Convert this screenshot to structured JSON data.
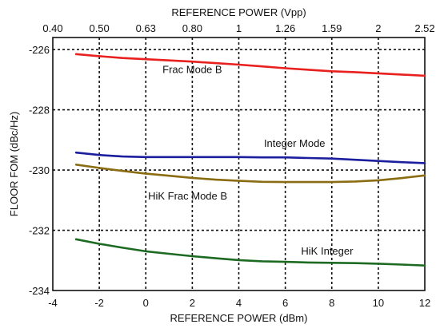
{
  "chart_data": {
    "type": "line",
    "xlabel": "REFERENCE POWER  (dBm)",
    "ylabel": "FLOOR FOM  (dBc/Hz)",
    "x2label": "REFERENCE POWER (Vpp)",
    "xlim": [
      -4,
      12
    ],
    "ylim": [
      -234,
      -225.6
    ],
    "x_ticks": [
      -4,
      -2,
      0,
      2,
      4,
      6,
      8,
      10,
      12
    ],
    "y_ticks": [
      -234,
      -232,
      -230,
      -228,
      -226
    ],
    "x_tick_labels": [
      "-4",
      "-2",
      "0",
      "2",
      "4",
      "6",
      "8",
      "10",
      "12"
    ],
    "y_tick_labels": [
      "-234",
      "-232",
      "-230",
      "-228",
      "-226"
    ],
    "top_ticks": [
      {
        "label": "0.40",
        "x": -4
      },
      {
        "label": "0.50",
        "x": -2
      },
      {
        "label": "0.63",
        "x": 0
      },
      {
        "label": "0.80",
        "x": 2
      },
      {
        "label": "1",
        "x": 4
      },
      {
        "label": "1.26",
        "x": 6
      },
      {
        "label": "1.59",
        "x": 8
      },
      {
        "label": "2",
        "x": 10
      },
      {
        "label": "2.52",
        "x": 12
      }
    ],
    "grid": "dashed",
    "series": [
      {
        "name": "Frac Mode B",
        "color": "#e8201e",
        "x": [
          -3,
          -2,
          -1,
          0,
          1,
          2,
          3,
          4,
          5,
          6,
          7,
          8,
          9,
          10,
          11,
          12
        ],
        "y": [
          -226.15,
          -226.22,
          -226.28,
          -226.32,
          -226.36,
          -226.4,
          -226.45,
          -226.5,
          -226.56,
          -226.62,
          -226.67,
          -226.72,
          -226.75,
          -226.79,
          -226.83,
          -226.87
        ],
        "label_at": [
          2,
          -226.65
        ]
      },
      {
        "name": "Integer Mode",
        "color": "#1b1f9e",
        "x": [
          -3,
          -2,
          -1,
          0,
          1,
          2,
          3,
          4,
          5,
          6,
          7,
          8,
          9,
          10,
          11,
          12
        ],
        "y": [
          -229.42,
          -229.5,
          -229.55,
          -229.57,
          -229.57,
          -229.57,
          -229.57,
          -229.57,
          -229.58,
          -229.58,
          -229.6,
          -229.62,
          -229.66,
          -229.7,
          -229.74,
          -229.77
        ],
        "label_at": [
          6.4,
          -229.1
        ]
      },
      {
        "name": "HiK Frac Mode B",
        "color": "#8a6d12",
        "x": [
          -3,
          -2,
          -1,
          0,
          1,
          2,
          3,
          4,
          5,
          6,
          7,
          8,
          9,
          10,
          11,
          12
        ],
        "y": [
          -229.82,
          -229.93,
          -230.03,
          -230.12,
          -230.19,
          -230.26,
          -230.32,
          -230.36,
          -230.39,
          -230.4,
          -230.4,
          -230.4,
          -230.38,
          -230.34,
          -230.27,
          -230.18
        ],
        "label_at": [
          1.8,
          -230.85
        ]
      },
      {
        "name": "HiK Integer",
        "color": "#1d6b22",
        "x": [
          -3,
          -2,
          -1,
          0,
          1,
          2,
          3,
          4,
          5,
          6,
          7,
          8,
          9,
          10,
          11,
          12
        ],
        "y": [
          -232.3,
          -232.45,
          -232.58,
          -232.7,
          -232.78,
          -232.86,
          -232.93,
          -232.99,
          -233.03,
          -233.05,
          -233.07,
          -233.08,
          -233.09,
          -233.11,
          -233.14,
          -233.17
        ],
        "label_at": [
          7.8,
          -232.67
        ]
      }
    ]
  }
}
